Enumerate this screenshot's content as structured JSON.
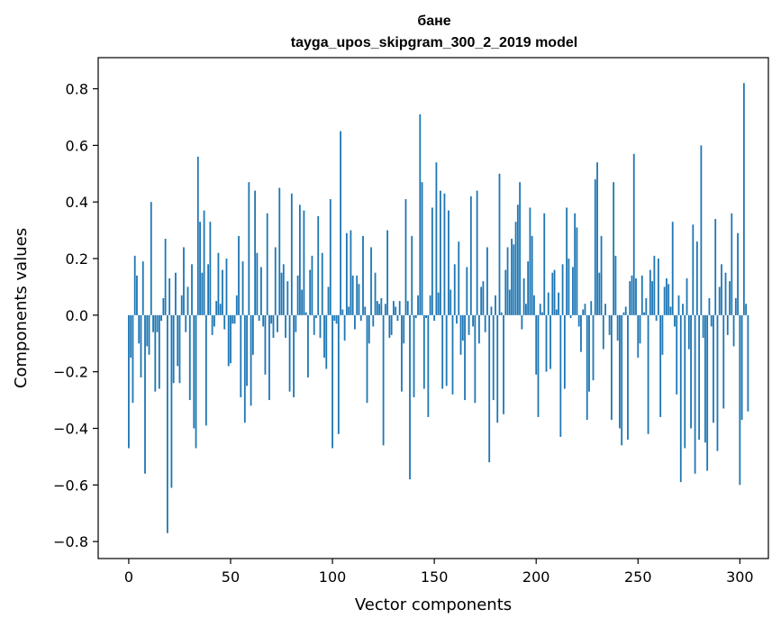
{
  "chart_data": {
    "type": "bar",
    "title": "бане",
    "subtitle": "tayga_upos_skipgram_300_2_2019 model",
    "xlabel": "Vector components",
    "ylabel": "Components values",
    "xlim": [
      -15,
      314
    ],
    "ylim": [
      -0.86,
      0.91
    ],
    "xticks": [
      0,
      50,
      100,
      150,
      200,
      250,
      300
    ],
    "xtick_labels": [
      "0",
      "50",
      "100",
      "150",
      "200",
      "250",
      "300"
    ],
    "yticks": [
      -0.8,
      -0.6,
      -0.4,
      -0.2,
      0.0,
      0.2,
      0.4,
      0.6,
      0.8
    ],
    "ytick_labels": [
      "−0.8",
      "−0.6",
      "−0.4",
      "−0.2",
      "0.0",
      "0.2",
      "0.4",
      "0.6",
      "0.8"
    ],
    "bar_color": "#1f77b4",
    "values": [
      -0.47,
      -0.15,
      -0.31,
      0.21,
      0.14,
      -0.1,
      -0.22,
      0.19,
      -0.56,
      -0.11,
      -0.14,
      0.4,
      -0.06,
      -0.27,
      -0.06,
      -0.26,
      -0.02,
      0.06,
      0.27,
      -0.77,
      0.13,
      -0.61,
      -0.24,
      0.15,
      -0.18,
      -0.24,
      0.07,
      0.24,
      -0.06,
      0.1,
      -0.3,
      0.18,
      -0.4,
      -0.47,
      0.56,
      0.33,
      0.15,
      0.37,
      -0.39,
      0.18,
      0.33,
      -0.07,
      -0.04,
      0.05,
      0.22,
      0.04,
      0.16,
      -0.05,
      0.2,
      -0.18,
      -0.17,
      -0.03,
      -0.03,
      0.07,
      0.28,
      -0.29,
      0.19,
      -0.38,
      -0.25,
      0.47,
      -0.32,
      -0.14,
      0.44,
      0.22,
      -0.02,
      0.17,
      -0.04,
      -0.21,
      0.36,
      -0.3,
      -0.03,
      -0.08,
      0.24,
      -0.06,
      0.45,
      0.15,
      0.18,
      -0.08,
      0.12,
      -0.27,
      0.43,
      -0.29,
      -0.06,
      0.14,
      0.39,
      0.09,
      0.37,
      0.01,
      -0.22,
      0.16,
      0.21,
      -0.07,
      -0.01,
      0.35,
      -0.08,
      0.22,
      -0.15,
      -0.19,
      0.1,
      0.41,
      -0.47,
      -0.02,
      -0.03,
      -0.42,
      0.65,
      0.02,
      -0.09,
      0.29,
      0.03,
      0.3,
      0.14,
      -0.05,
      0.14,
      0.11,
      -0.02,
      0.28,
      0.03,
      -0.31,
      -0.1,
      0.24,
      -0.04,
      0.15,
      0.05,
      0.04,
      0.06,
      -0.46,
      0.04,
      0.3,
      -0.08,
      -0.07,
      0.05,
      0.03,
      -0.02,
      0.05,
      -0.27,
      -0.1,
      0.41,
      0.05,
      -0.58,
      0.28,
      -0.29,
      -0.01,
      0.07,
      0.71,
      0.47,
      -0.26,
      -0.01,
      -0.36,
      0.07,
      0.38,
      -0.02,
      0.54,
      0.08,
      0.44,
      -0.26,
      0.43,
      -0.25,
      0.37,
      0.09,
      -0.28,
      0.18,
      -0.03,
      0.26,
      -0.14,
      -0.09,
      -0.3,
      0.17,
      -0.07,
      0.42,
      -0.04,
      -0.31,
      0.44,
      -0.1,
      0.1,
      0.12,
      -0.06,
      0.24,
      -0.52,
      0.03,
      -0.3,
      0.07,
      -0.38,
      0.5,
      0.01,
      -0.35,
      0.16,
      0.24,
      0.09,
      0.27,
      0.25,
      0.33,
      0.39,
      0.47,
      -0.05,
      0.13,
      0.04,
      0.19,
      0.38,
      0.28,
      0.07,
      -0.21,
      -0.36,
      0.04,
      0.01,
      0.36,
      -0.2,
      0.08,
      -0.19,
      0.15,
      0.16,
      0.02,
      0.08,
      -0.43,
      0.18,
      -0.26,
      0.38,
      0.2,
      -0.01,
      0.17,
      0.36,
      0.31,
      -0.04,
      -0.13,
      0.02,
      0.04,
      -0.37,
      -0.27,
      0.05,
      -0.23,
      0.48,
      0.54,
      0.15,
      0.28,
      -0.12,
      0.04,
      0.0,
      -0.07,
      -0.37,
      0.47,
      0.21,
      -0.09,
      -0.4,
      -0.46,
      0.01,
      0.03,
      -0.44,
      0.12,
      0.14,
      0.57,
      0.13,
      -0.15,
      -0.1,
      0.14,
      0.01,
      0.06,
      -0.42,
      0.16,
      0.12,
      0.21,
      -0.02,
      0.2,
      -0.36,
      -0.14,
      0.1,
      0.13,
      0.11,
      0.03,
      0.33,
      -0.04,
      -0.28,
      0.07,
      -0.59,
      0.04,
      -0.47,
      0.13,
      -0.12,
      -0.4,
      0.32,
      -0.56,
      0.26,
      -0.44,
      0.6,
      -0.08,
      -0.45,
      -0.55,
      0.06,
      -0.04,
      -0.38,
      0.34,
      -0.48,
      0.1,
      0.18,
      -0.33,
      0.15,
      -0.07,
      0.12,
      0.36,
      -0.11,
      0.06,
      0.29,
      -0.6,
      -0.37,
      0.82,
      0.04,
      -0.34
    ]
  }
}
